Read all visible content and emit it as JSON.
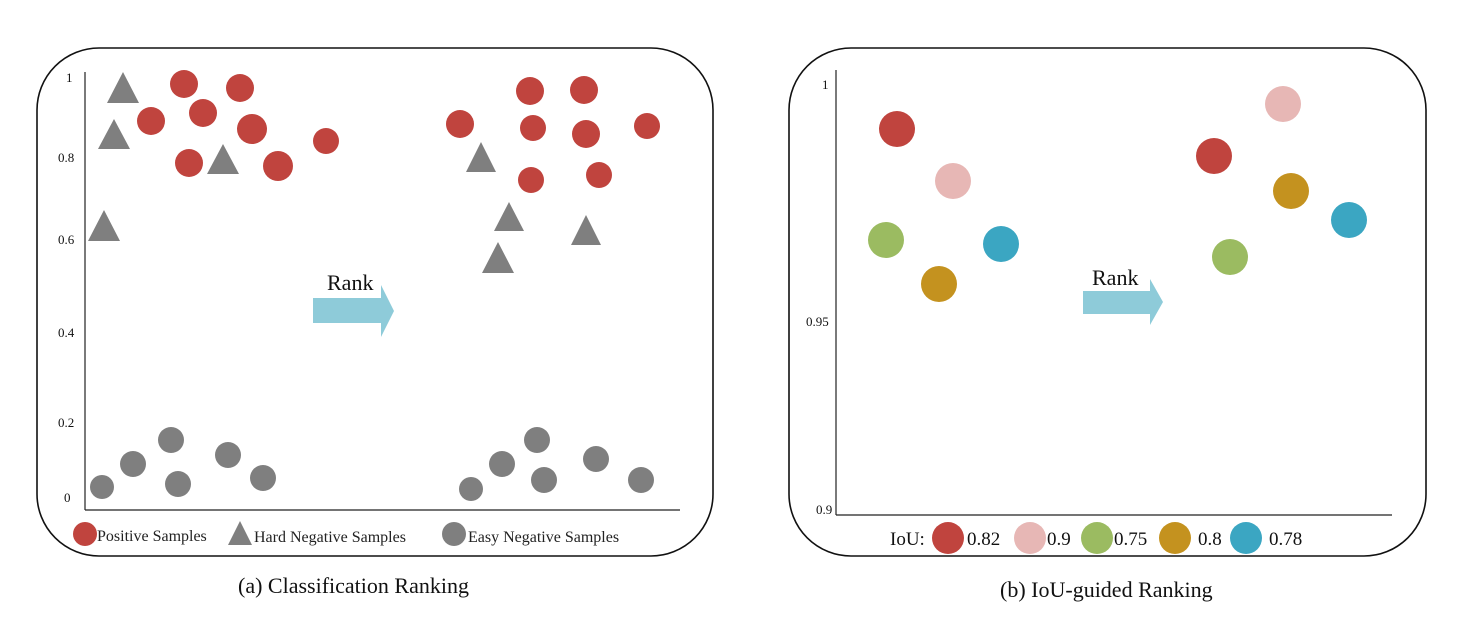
{
  "figure": {
    "panel_a": {
      "caption": "(a)  Classification Ranking",
      "y_ticks": [
        "1",
        "0.8",
        "0.6",
        "0.4",
        "0.2",
        "0"
      ],
      "rank_label": "Rank",
      "legend": {
        "positive": "Positive Samples",
        "hard_negative": "Hard  Negative Samples",
        "easy_negative": "Easy Negative Samples"
      }
    },
    "panel_b": {
      "caption": "(b) IoU-guided Ranking",
      "y_ticks": [
        "1",
        "0.95",
        "0.9"
      ],
      "rank_label": "Rank",
      "legend_prefix": "IoU:",
      "iou_values": [
        "0.82",
        "0.9",
        "0.75",
        "0.8",
        "0.78"
      ]
    }
  },
  "colors": {
    "positive": "#c0443e",
    "negative": "#7f7f7f",
    "arrow": "#8ecbd9",
    "iou_0.82": "#c0443e",
    "iou_0.9": "#e7b7b5",
    "iou_0.75": "#9bbb61",
    "iou_0.8": "#c4921f",
    "iou_0.78": "#3ba6c2"
  }
}
